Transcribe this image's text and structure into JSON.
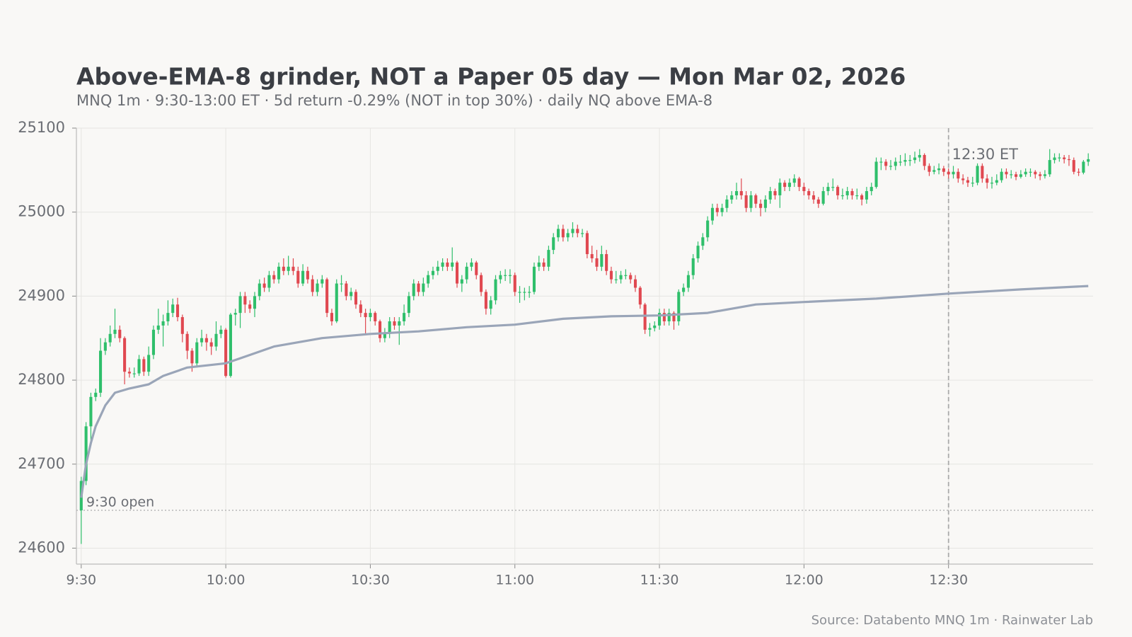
{
  "chart_data": {
    "type": "candlestick",
    "title": "Above-EMA-8 grinder, NOT a Paper 05 day — Mon Mar 02, 2026",
    "subtitle": "MNQ 1m · 9:30-13:00 ET · 5d return -0.29% (NOT in top 30%) · daily NQ above EMA-8",
    "source": "Source: Databento MNQ 1m · Rainwater Lab",
    "up_color": "#2fbf6b",
    "down_color": "#e04850",
    "line_color": "#9aa5b8",
    "grid": true,
    "xlim": [
      -1,
      210
    ],
    "xticks": [
      {
        "value": 0,
        "label": "9:30"
      },
      {
        "value": 30,
        "label": "10:00"
      },
      {
        "value": 60,
        "label": "10:30"
      },
      {
        "value": 90,
        "label": "11:00"
      },
      {
        "value": 120,
        "label": "11:30"
      },
      {
        "value": 150,
        "label": "12:00"
      },
      {
        "value": 180,
        "label": "12:30"
      }
    ],
    "ylim": [
      24581,
      25100
    ],
    "yticks": [
      24600,
      24700,
      24800,
      24900,
      25000,
      25100
    ],
    "open_line": {
      "value": 24645,
      "label": "9:30 open"
    },
    "marker": {
      "x": 180,
      "label": "12:30 ET"
    },
    "values": [
      [
        24645,
        24685,
        24605,
        24680
      ],
      [
        24680,
        24750,
        24675,
        24745
      ],
      [
        24745,
        24785,
        24725,
        24780
      ],
      [
        24780,
        24790,
        24775,
        24785
      ],
      [
        24785,
        24850,
        24780,
        24835
      ],
      [
        24835,
        24850,
        24830,
        24845
      ],
      [
        24845,
        24865,
        24840,
        24855
      ],
      [
        24855,
        24885,
        24850,
        24860
      ],
      [
        24860,
        24865,
        24845,
        24850
      ],
      [
        24850,
        24852,
        24795,
        24810
      ],
      [
        24810,
        24815,
        24803,
        24808
      ],
      [
        24808,
        24815,
        24803,
        24808
      ],
      [
        24808,
        24830,
        24805,
        24825
      ],
      [
        24825,
        24828,
        24805,
        24810
      ],
      [
        24810,
        24840,
        24805,
        24830
      ],
      [
        24830,
        24865,
        24825,
        24860
      ],
      [
        24860,
        24885,
        24855,
        24865
      ],
      [
        24865,
        24878,
        24840,
        24870
      ],
      [
        24870,
        24895,
        24865,
        24880
      ],
      [
        24880,
        24897,
        24875,
        24890
      ],
      [
        24890,
        24898,
        24870,
        24875
      ],
      [
        24875,
        24878,
        24845,
        24855
      ],
      [
        24855,
        24858,
        24825,
        24835
      ],
      [
        24835,
        24838,
        24810,
        24820
      ],
      [
        24820,
        24850,
        24815,
        24845
      ],
      [
        24845,
        24860,
        24840,
        24850
      ],
      [
        24850,
        24855,
        24835,
        24845
      ],
      [
        24845,
        24850,
        24830,
        24840
      ],
      [
        24840,
        24870,
        24835,
        24855
      ],
      [
        24855,
        24865,
        24850,
        24860
      ],
      [
        24860,
        24862,
        24803,
        24805
      ],
      [
        24805,
        24880,
        24803,
        24878
      ],
      [
        24878,
        24885,
        24865,
        24880
      ],
      [
        24880,
        24905,
        24862,
        24900
      ],
      [
        24900,
        24905,
        24880,
        24890
      ],
      [
        24890,
        24895,
        24880,
        24885
      ],
      [
        24885,
        24905,
        24875,
        24900
      ],
      [
        24900,
        24920,
        24895,
        24915
      ],
      [
        24915,
        24922,
        24905,
        24910
      ],
      [
        24910,
        24930,
        24905,
        24925
      ],
      [
        24925,
        24930,
        24915,
        24920
      ],
      [
        24920,
        24940,
        24915,
        24935
      ],
      [
        24935,
        24945,
        24925,
        24930
      ],
      [
        24930,
        24948,
        24925,
        24935
      ],
      [
        24935,
        24945,
        24925,
        24930
      ],
      [
        24930,
        24935,
        24910,
        24915
      ],
      [
        24915,
        24938,
        24912,
        24930
      ],
      [
        24930,
        24935,
        24915,
        24920
      ],
      [
        24920,
        24925,
        24900,
        24905
      ],
      [
        24905,
        24920,
        24900,
        24915
      ],
      [
        24915,
        24925,
        24910,
        24920
      ],
      [
        24920,
        24922,
        24875,
        24880
      ],
      [
        24880,
        24885,
        24865,
        24870
      ],
      [
        24870,
        24920,
        24868,
        24915
      ],
      [
        24915,
        24925,
        24905,
        24915
      ],
      [
        24915,
        24918,
        24895,
        24900
      ],
      [
        24900,
        24910,
        24895,
        24905
      ],
      [
        24905,
        24908,
        24885,
        24890
      ],
      [
        24890,
        24895,
        24875,
        24880
      ],
      [
        24880,
        24885,
        24855,
        24875
      ],
      [
        24875,
        24885,
        24870,
        24880
      ],
      [
        24880,
        24882,
        24865,
        24870
      ],
      [
        24870,
        24872,
        24845,
        24850
      ],
      [
        24850,
        24862,
        24845,
        24855
      ],
      [
        24855,
        24875,
        24850,
        24870
      ],
      [
        24870,
        24875,
        24860,
        24865
      ],
      [
        24865,
        24875,
        24842,
        24870
      ],
      [
        24870,
        24890,
        24865,
        24880
      ],
      [
        24880,
        24905,
        24875,
        24900
      ],
      [
        24900,
        24920,
        24895,
        24915
      ],
      [
        24915,
        24918,
        24900,
        24905
      ],
      [
        24905,
        24922,
        24900,
        24915
      ],
      [
        24915,
        24930,
        24910,
        24925
      ],
      [
        24925,
        24935,
        24920,
        24930
      ],
      [
        24930,
        24942,
        24925,
        24935
      ],
      [
        24935,
        24945,
        24930,
        24940
      ],
      [
        24940,
        24945,
        24930,
        24935
      ],
      [
        24935,
        24958,
        24930,
        24940
      ],
      [
        24940,
        24942,
        24910,
        24915
      ],
      [
        24915,
        24925,
        24905,
        24920
      ],
      [
        24920,
        24940,
        24915,
        24935
      ],
      [
        24935,
        24945,
        24930,
        24940
      ],
      [
        24940,
        24942,
        24920,
        24925
      ],
      [
        24925,
        24928,
        24900,
        24905
      ],
      [
        24905,
        24908,
        24878,
        24885
      ],
      [
        24885,
        24900,
        24878,
        24895
      ],
      [
        24895,
        24925,
        24890,
        24920
      ],
      [
        24920,
        24930,
        24915,
        24925
      ],
      [
        24925,
        24932,
        24918,
        24925
      ],
      [
        24925,
        24932,
        24915,
        24925
      ],
      [
        24925,
        24928,
        24900,
        24905
      ],
      [
        24905,
        24912,
        24892,
        24905
      ],
      [
        24905,
        24910,
        24895,
        24905
      ],
      [
        24905,
        24912,
        24898,
        24905
      ],
      [
        24905,
        24940,
        24902,
        24935
      ],
      [
        24935,
        24948,
        24930,
        24940
      ],
      [
        24940,
        24945,
        24930,
        24935
      ],
      [
        24935,
        24960,
        24930,
        24955
      ],
      [
        24955,
        24975,
        24950,
        24970
      ],
      [
        24970,
        24985,
        24965,
        24980
      ],
      [
        24980,
        24985,
        24965,
        24970
      ],
      [
        24970,
        24980,
        24965,
        24975
      ],
      [
        24975,
        24988,
        24970,
        24980
      ],
      [
        24980,
        24985,
        24970,
        24975
      ],
      [
        24975,
        24980,
        24970,
        24975
      ],
      [
        24975,
        24978,
        24945,
        24950
      ],
      [
        24950,
        24960,
        24940,
        24945
      ],
      [
        24945,
        24955,
        24930,
        24935
      ],
      [
        24935,
        24960,
        24930,
        24950
      ],
      [
        24950,
        24955,
        24925,
        24930
      ],
      [
        24930,
        24935,
        24915,
        24920
      ],
      [
        24920,
        24930,
        24915,
        24920
      ],
      [
        24920,
        24930,
        24915,
        24925
      ],
      [
        24925,
        24932,
        24920,
        24925
      ],
      [
        24925,
        24928,
        24915,
        24920
      ],
      [
        24920,
        24925,
        24905,
        24910
      ],
      [
        24910,
        24912,
        24885,
        24890
      ],
      [
        24890,
        24892,
        24855,
        24860
      ],
      [
        24860,
        24868,
        24852,
        24862
      ],
      [
        24862,
        24870,
        24858,
        24865
      ],
      [
        24865,
        24885,
        24860,
        24880
      ],
      [
        24880,
        24885,
        24865,
        24870
      ],
      [
        24870,
        24885,
        24865,
        24880
      ],
      [
        24880,
        24882,
        24860,
        24870
      ],
      [
        24870,
        24908,
        24865,
        24905
      ],
      [
        24905,
        24915,
        24900,
        24910
      ],
      [
        24910,
        24930,
        24905,
        24925
      ],
      [
        24925,
        24950,
        24920,
        24945
      ],
      [
        24945,
        24965,
        24940,
        24960
      ],
      [
        24960,
        24975,
        24955,
        24970
      ],
      [
        24970,
        24995,
        24965,
        24990
      ],
      [
        24990,
        25010,
        24985,
        25005
      ],
      [
        25005,
        25010,
        24995,
        25000
      ],
      [
        25000,
        25010,
        24995,
        25005
      ],
      [
        25005,
        25020,
        25000,
        25015
      ],
      [
        25015,
        25025,
        25010,
        25020
      ],
      [
        25020,
        25035,
        25015,
        25025
      ],
      [
        25025,
        25040,
        25015,
        25020
      ],
      [
        25020,
        25025,
        25000,
        25005
      ],
      [
        25005,
        25025,
        25000,
        25020
      ],
      [
        25020,
        25022,
        25005,
        25010
      ],
      [
        25010,
        25015,
        24995,
        25005
      ],
      [
        25005,
        25020,
        25000,
        25015
      ],
      [
        25015,
        25030,
        25010,
        25025
      ],
      [
        25025,
        25028,
        25015,
        25020
      ],
      [
        25020,
        25040,
        25005,
        25035
      ],
      [
        25035,
        25038,
        25025,
        25030
      ],
      [
        25030,
        25040,
        25025,
        25035
      ],
      [
        25035,
        25045,
        25030,
        25040
      ],
      [
        25040,
        25042,
        25025,
        25030
      ],
      [
        25030,
        25035,
        25020,
        25025
      ],
      [
        25025,
        25028,
        25015,
        25020
      ],
      [
        25020,
        25025,
        25010,
        25015
      ],
      [
        25015,
        25018,
        25005,
        25010
      ],
      [
        25010,
        25030,
        25008,
        25025
      ],
      [
        25025,
        25035,
        25020,
        25030
      ],
      [
        25030,
        25040,
        25025,
        25030
      ],
      [
        25030,
        25032,
        25015,
        25020
      ],
      [
        25020,
        25028,
        25015,
        25020
      ],
      [
        25020,
        25030,
        25015,
        25025
      ],
      [
        25025,
        25028,
        25015,
        25020
      ],
      [
        25020,
        25028,
        25015,
        25020
      ],
      [
        25020,
        25022,
        25008,
        25015
      ],
      [
        25015,
        25030,
        25010,
        25025
      ],
      [
        25025,
        25035,
        25020,
        25030
      ],
      [
        25030,
        25065,
        25028,
        25060
      ],
      [
        25060,
        25065,
        25050,
        25060
      ],
      [
        25060,
        25063,
        25050,
        25055
      ],
      [
        25055,
        25062,
        25050,
        25055
      ],
      [
        25055,
        25065,
        25050,
        25060
      ],
      [
        25060,
        25068,
        25055,
        25060
      ],
      [
        25060,
        25070,
        25055,
        25062
      ],
      [
        25062,
        25068,
        25055,
        25062
      ],
      [
        25062,
        25072,
        25058,
        25065
      ],
      [
        25065,
        25075,
        25060,
        25068
      ],
      [
        25068,
        25070,
        25050,
        25055
      ],
      [
        25055,
        25058,
        25043,
        25048
      ],
      [
        25048,
        25055,
        25045,
        25050
      ],
      [
        25050,
        25058,
        25045,
        25052
      ],
      [
        25052,
        25055,
        25043,
        25048
      ],
      [
        25048,
        25052,
        25040,
        25045
      ],
      [
        25045,
        25055,
        25040,
        25048
      ],
      [
        25048,
        25052,
        25035,
        25040
      ],
      [
        25040,
        25045,
        25033,
        25038
      ],
      [
        25038,
        25042,
        25030,
        25035
      ],
      [
        25035,
        25042,
        25030,
        25035
      ],
      [
        25035,
        25058,
        25032,
        25055
      ],
      [
        25055,
        25058,
        25035,
        25040
      ],
      [
        25040,
        25045,
        25028,
        25035
      ],
      [
        25035,
        25042,
        25028,
        25035
      ],
      [
        25035,
        25045,
        25032,
        25038
      ],
      [
        25038,
        25052,
        25035,
        25048
      ],
      [
        25048,
        25052,
        25040,
        25045
      ],
      [
        25045,
        25050,
        25040,
        25045
      ],
      [
        25045,
        25048,
        25038,
        25042
      ],
      [
        25042,
        25050,
        25040,
        25045
      ],
      [
        25045,
        25052,
        25042,
        25048
      ],
      [
        25048,
        25052,
        25042,
        25048
      ],
      [
        25048,
        25050,
        25040,
        25045
      ],
      [
        25045,
        25048,
        25038,
        25043
      ],
      [
        25043,
        25050,
        25040,
        25045
      ],
      [
        25045,
        25075,
        25042,
        25062
      ],
      [
        25062,
        25070,
        25058,
        25065
      ],
      [
        25065,
        25070,
        25060,
        25065
      ],
      [
        25065,
        25068,
        25058,
        25063
      ],
      [
        25063,
        25068,
        25055,
        25062
      ],
      [
        25062,
        25065,
        25045,
        25048
      ],
      [
        25048,
        25052,
        25043,
        25047
      ],
      [
        25047,
        25062,
        25045,
        25060
      ],
      [
        25060,
        25070,
        25055,
        25063
      ]
    ],
    "line": {
      "x": [
        0,
        1,
        2,
        3,
        5,
        7,
        10,
        14,
        17,
        22,
        30,
        35,
        40,
        50,
        60,
        70,
        80,
        90,
        100,
        110,
        120,
        130,
        140,
        150,
        165,
        180,
        195,
        209
      ],
      "values": [
        24660,
        24700,
        24725,
        24745,
        24770,
        24785,
        24790,
        24795,
        24805,
        24815,
        24820,
        24830,
        24840,
        24850,
        24855,
        24858,
        24863,
        24866,
        24873,
        24876,
        24877,
        24880,
        24890,
        24893,
        24897,
        24903,
        24908,
        24912
      ]
    }
  }
}
